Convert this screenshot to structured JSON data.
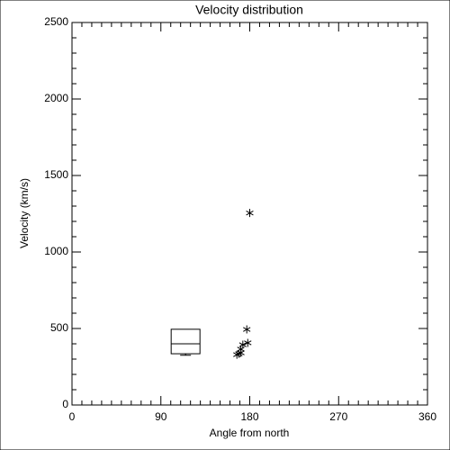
{
  "chart_data": {
    "type": "scatter",
    "title": "Velocity distribution",
    "x_label": "Angle from north",
    "y_label": "Velocity (km/s)",
    "xlim": [
      0,
      360
    ],
    "xticks": [
      0,
      90,
      180,
      270,
      360
    ],
    "xminorticks": [
      10,
      20,
      30,
      40,
      50,
      60,
      70,
      80,
      100,
      110,
      120,
      130,
      140,
      150,
      160,
      170,
      190,
      200,
      210,
      220,
      230,
      240,
      250,
      260,
      280,
      290,
      300,
      310,
      320,
      330,
      340,
      350
    ],
    "ylim": [
      0,
      2500
    ],
    "yticks": [
      0,
      500,
      1000,
      1500,
      2000,
      2500
    ],
    "yminorticks": [
      100,
      200,
      300,
      400,
      600,
      700,
      800,
      900,
      1100,
      1200,
      1300,
      1400,
      1600,
      1700,
      1800,
      1900,
      2100,
      2200,
      2300,
      2400
    ],
    "color": "#000000",
    "series": [
      {
        "x": [
          180,
          177,
          178,
          173,
          171,
          169,
          167,
          171
        ],
        "y": [
          1255,
          494,
          406,
          394,
          365,
          335,
          329,
          341
        ]
      }
    ],
    "boxes": [
      {
        "x": 115,
        "whisker_low": 325,
        "q1": 335,
        "median": 400,
        "q3": 495
      }
    ]
  }
}
